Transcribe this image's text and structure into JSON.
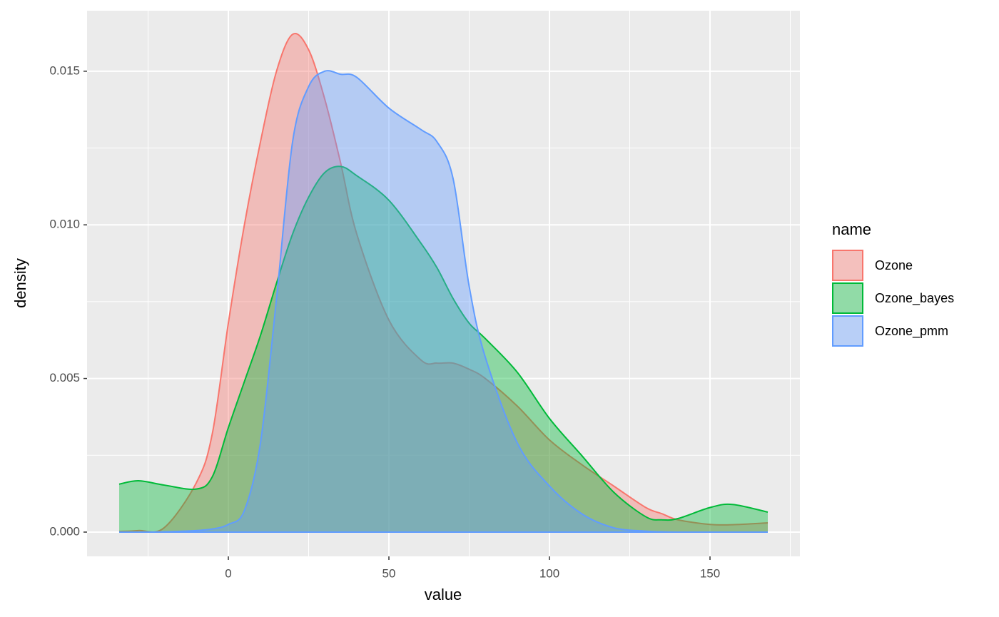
{
  "chart_data": {
    "type": "density",
    "x_label": "value",
    "y_label": "density",
    "legend_title": "name",
    "x": [
      -34,
      -28,
      -20,
      -10,
      -5,
      0,
      5,
      10,
      15,
      20,
      25,
      30,
      35,
      40,
      50,
      60,
      65,
      70,
      75,
      80,
      90,
      100,
      110,
      120,
      130,
      135,
      140,
      150,
      157,
      168
    ],
    "series": [
      {
        "name": "Ozone",
        "color": "#F8766D",
        "values": [
          2e-05,
          5e-05,
          0.00014,
          0.0016,
          0.0032,
          0.0068,
          0.01,
          0.0127,
          0.015,
          0.0162,
          0.0157,
          0.0141,
          0.012,
          0.0097,
          0.0069,
          0.0056,
          0.0055,
          0.0055,
          0.0053,
          0.005,
          0.0041,
          0.003,
          0.0022,
          0.0015,
          0.0008,
          0.0006,
          0.0004,
          0.00025,
          0.00024,
          0.0003
        ]
      },
      {
        "name": "Ozone_bayes",
        "color": "#00BA38",
        "values": [
          0.00156,
          0.00167,
          0.00153,
          0.0014,
          0.0018,
          0.0034,
          0.0049,
          0.0064,
          0.0081,
          0.0097,
          0.0109,
          0.0117,
          0.0119,
          0.0116,
          0.0108,
          0.0094,
          0.0086,
          0.0076,
          0.0068,
          0.0063,
          0.0052,
          0.0037,
          0.0025,
          0.0013,
          0.0005,
          0.0004,
          0.00044,
          0.0008,
          0.0009,
          0.00065
        ]
      },
      {
        "name": "Ozone_pmm",
        "color": "#619CFF",
        "values": [
          0,
          0,
          1e-05,
          5e-05,
          0.0001,
          0.00025,
          0.0007,
          0.0029,
          0.0076,
          0.0127,
          0.0145,
          0.015,
          0.0149,
          0.0148,
          0.0138,
          0.0131,
          0.0127,
          0.0115,
          0.008,
          0.0057,
          0.0029,
          0.0015,
          0.0006,
          0.00014,
          3e-05,
          1e-05,
          0,
          0,
          0,
          0
        ]
      }
    ],
    "fill_alpha": 0.4,
    "xlim": [
      -44,
      178
    ],
    "ylim": [
      -0.00079,
      0.01697
    ],
    "xticks": [
      0,
      50,
      100,
      150
    ],
    "yticks": [
      {
        "value": 0,
        "label": "0.000"
      },
      {
        "value": 0.005,
        "label": "0.005"
      },
      {
        "value": 0.01,
        "label": "0.010"
      },
      {
        "value": 0.015,
        "label": "0.015"
      }
    ],
    "x_minor_breaks": [
      -25,
      25,
      75,
      125,
      175
    ],
    "y_minor_breaks": [
      0.0025,
      0.0075,
      0.0125
    ],
    "grid": true
  }
}
